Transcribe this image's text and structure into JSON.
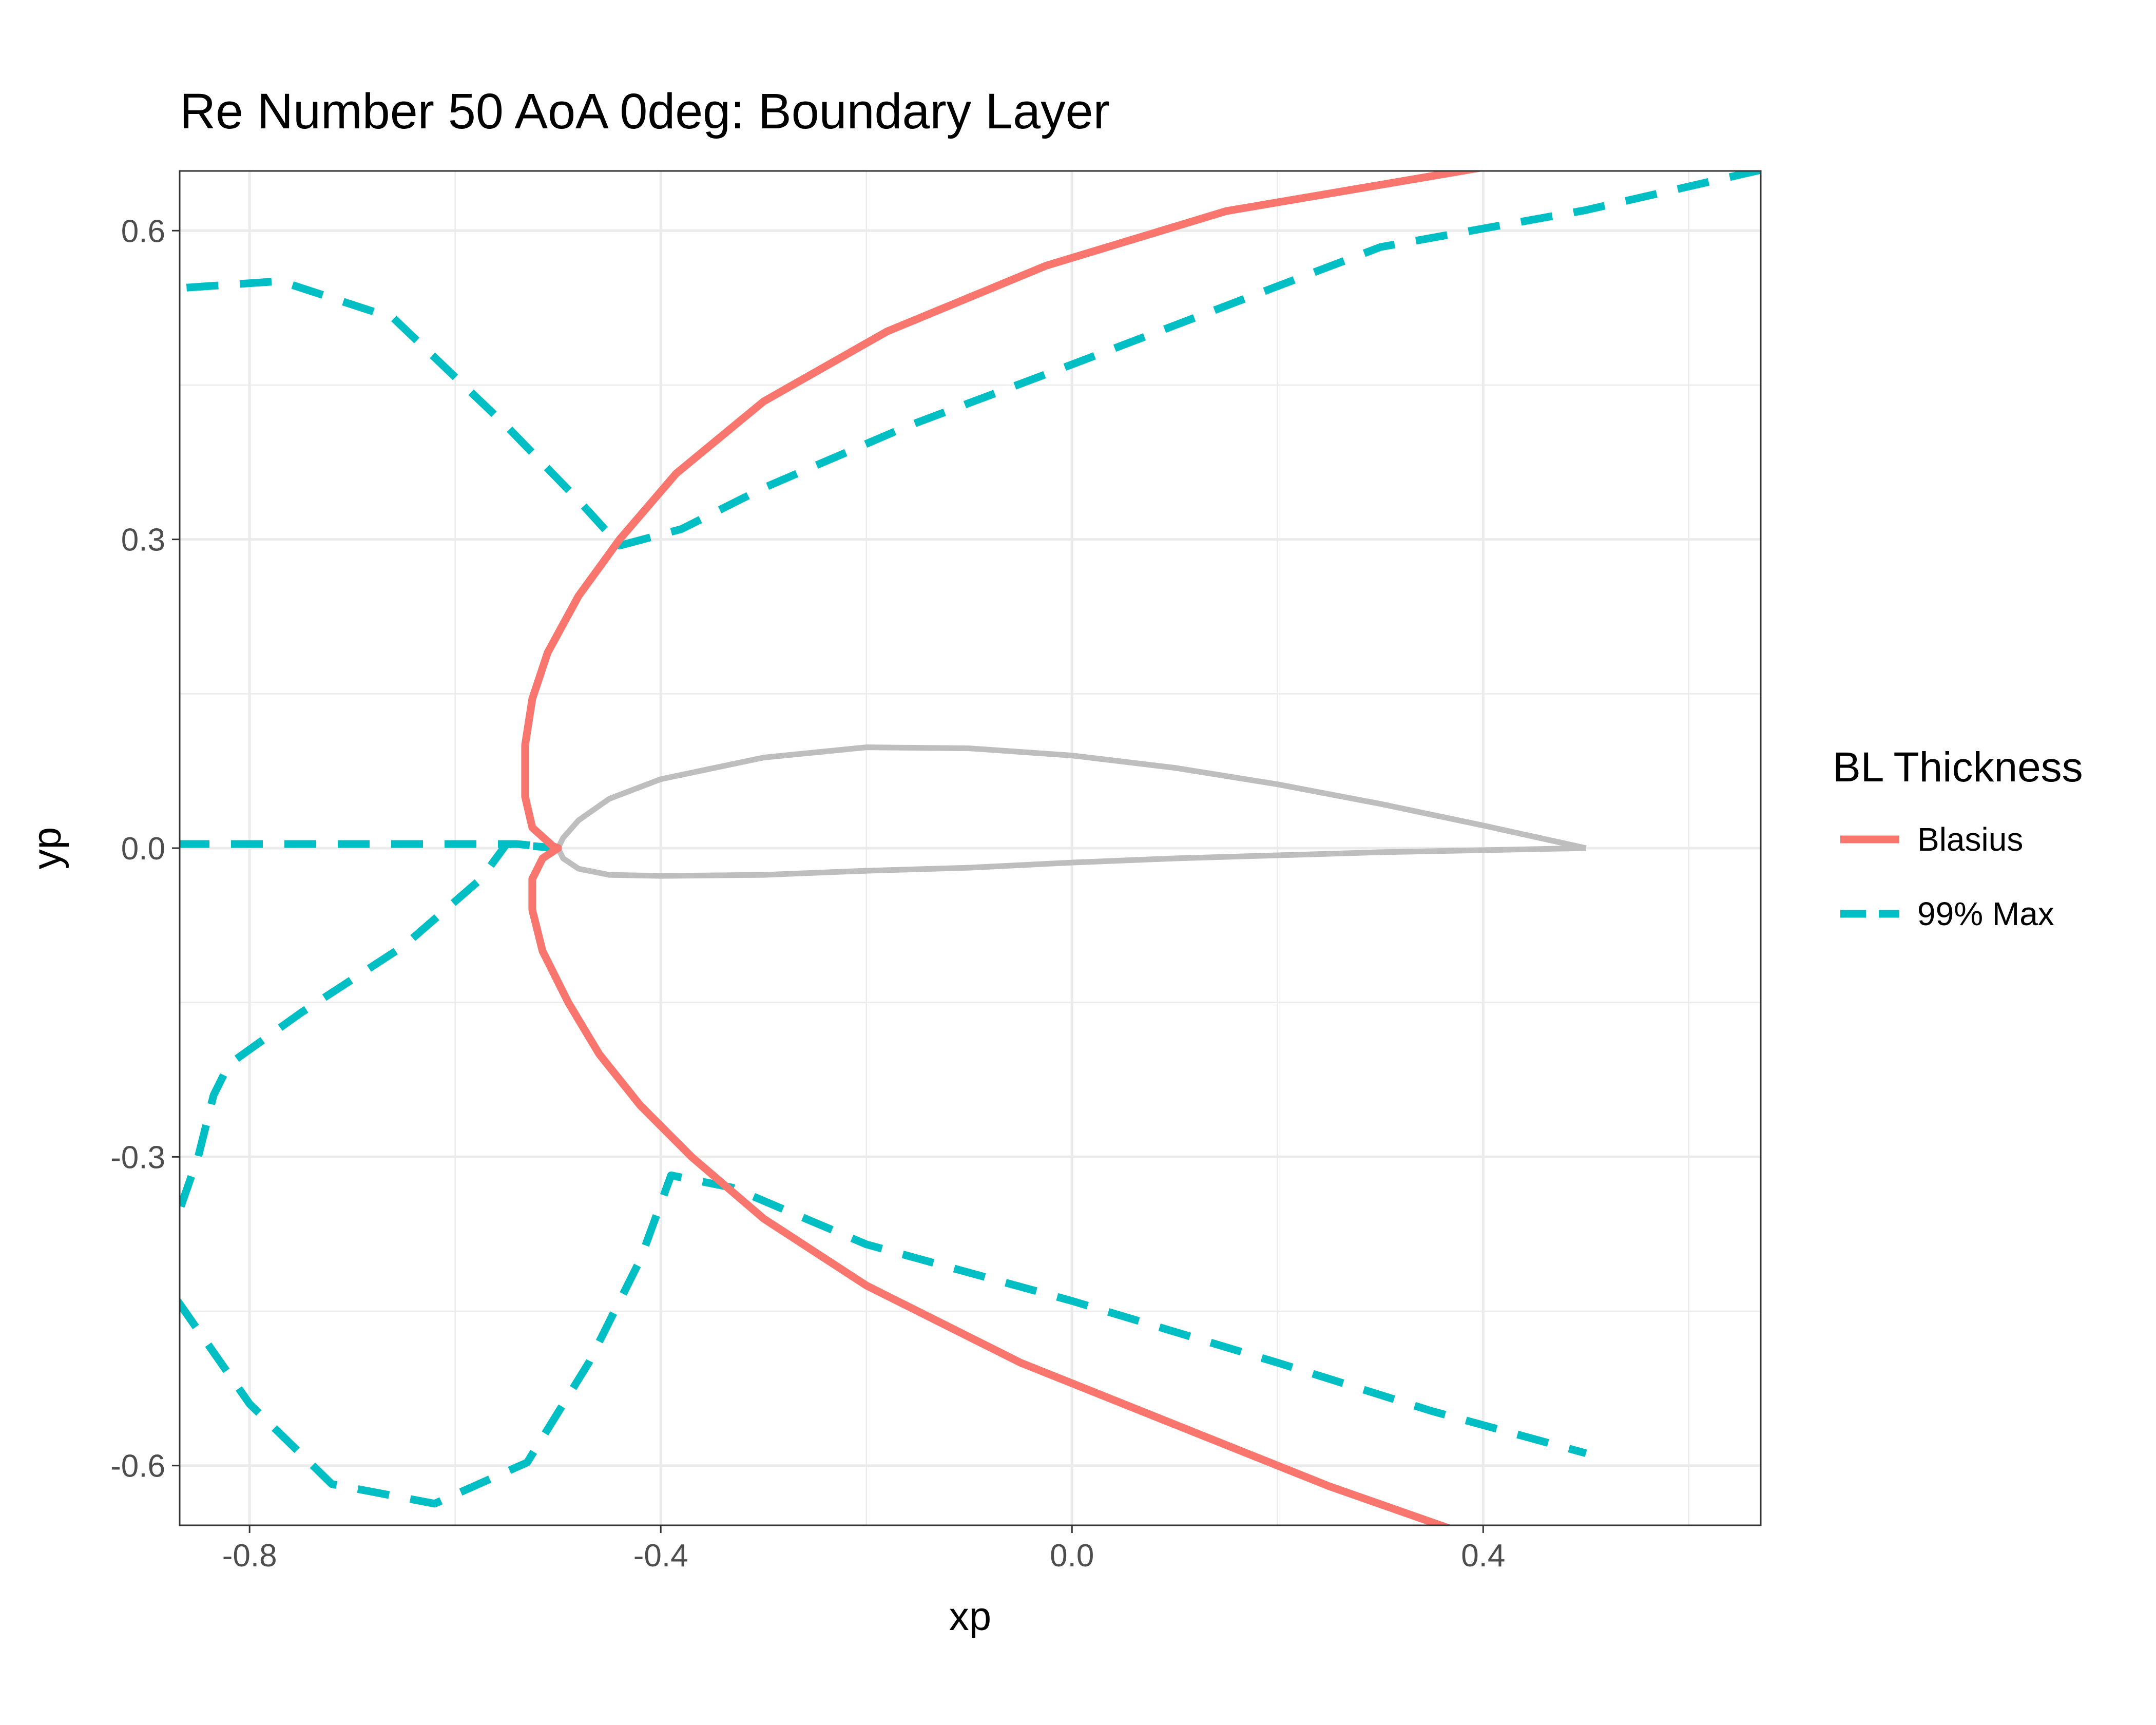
{
  "chart_data": {
    "type": "line",
    "title": "Re Number 50 AoA 0deg: Boundary Layer",
    "xlabel": "xp",
    "ylabel": "yp",
    "xlim": [
      -0.868,
      0.67
    ],
    "ylim": [
      -0.658,
      0.658
    ],
    "x_ticks": [
      -0.8,
      -0.4,
      0.0,
      0.4
    ],
    "x_tick_labels": [
      "-0.8",
      "-0.4",
      "0.0",
      "0.4"
    ],
    "y_ticks": [
      -0.6,
      -0.3,
      0.0,
      0.3,
      0.6
    ],
    "y_tick_labels": [
      "-0.6",
      "-0.3",
      "0.0",
      "0.3",
      "0.6"
    ],
    "grid": true,
    "legend": {
      "title": "BL Thickness",
      "position": "right"
    },
    "colors": {
      "blasius": "#F8766D",
      "max99": "#00BFC4",
      "airfoil": "#BEBEBE"
    },
    "series": [
      {
        "name": "Blasius",
        "style": "solid",
        "color": "#F8766D",
        "points": [
          [
            0.397,
            0.661
          ],
          [
            0.15,
            0.619
          ],
          [
            -0.025,
            0.566
          ],
          [
            -0.18,
            0.502
          ],
          [
            -0.3,
            0.434
          ],
          [
            -0.385,
            0.364
          ],
          [
            -0.44,
            0.3
          ],
          [
            -0.48,
            0.245
          ],
          [
            -0.51,
            0.19
          ],
          [
            -0.525,
            0.145
          ],
          [
            -0.532,
            0.1
          ],
          [
            -0.532,
            0.05
          ],
          [
            -0.525,
            0.02
          ],
          [
            -0.505,
            0.002
          ],
          [
            -0.5,
            0.0
          ],
          [
            -0.515,
            -0.01
          ],
          [
            -0.525,
            -0.03
          ],
          [
            -0.525,
            -0.06
          ],
          [
            -0.515,
            -0.1
          ],
          [
            -0.49,
            -0.15
          ],
          [
            -0.46,
            -0.2
          ],
          [
            -0.42,
            -0.25
          ],
          [
            -0.37,
            -0.3
          ],
          [
            -0.3,
            -0.36
          ],
          [
            -0.2,
            -0.425
          ],
          [
            -0.05,
            -0.5
          ],
          [
            0.1,
            -0.56
          ],
          [
            0.25,
            -0.62
          ],
          [
            0.387,
            -0.668
          ]
        ]
      },
      {
        "name": "99% Max",
        "style": "dashed",
        "color": "#00BFC4",
        "segments": [
          [
            [
              0.67,
              0.659
            ],
            [
              0.5,
              0.62
            ],
            [
              0.3,
              0.584
            ],
            [
              0.15,
              0.527
            ],
            [
              0.0,
              0.47
            ],
            [
              -0.16,
              0.41
            ],
            [
              -0.3,
              0.35
            ],
            [
              -0.38,
              0.31
            ],
            [
              -0.44,
              0.294
            ],
            [
              -0.48,
              0.338
            ],
            [
              -0.55,
              0.41
            ],
            [
              -0.66,
              0.515
            ],
            [
              -0.77,
              0.551
            ],
            [
              -0.87,
              0.544
            ]
          ],
          [
            [
              -0.87,
              0.004
            ],
            [
              -0.54,
              0.004
            ],
            [
              -0.5,
              0.0
            ],
            [
              -0.55,
              0.004
            ],
            [
              -0.575,
              -0.03
            ],
            [
              -0.65,
              -0.095
            ],
            [
              -0.75,
              -0.16
            ],
            [
              -0.82,
              -0.21
            ],
            [
              -0.835,
              -0.24
            ],
            [
              -0.85,
              -0.3
            ],
            [
              -0.87,
              -0.357
            ]
          ],
          [
            [
              -0.87,
              -0.44
            ],
            [
              -0.8,
              -0.54
            ],
            [
              -0.72,
              -0.618
            ],
            [
              -0.62,
              -0.637
            ],
            [
              -0.53,
              -0.597
            ],
            [
              -0.47,
              -0.5
            ],
            [
              -0.42,
              -0.4
            ],
            [
              -0.39,
              -0.318
            ],
            [
              -0.33,
              -0.33
            ],
            [
              -0.2,
              -0.385
            ],
            [
              0.0,
              -0.44
            ],
            [
              0.2,
              -0.5
            ],
            [
              0.35,
              -0.547
            ],
            [
              0.5,
              -0.588
            ]
          ]
        ]
      },
      {
        "style": "solid",
        "color": "#BEBEBE",
        "points": [
          [
            0.5,
            0.0
          ],
          [
            0.4,
            0.022
          ],
          [
            0.3,
            0.043
          ],
          [
            0.2,
            0.062
          ],
          [
            0.1,
            0.078
          ],
          [
            0.0,
            0.09
          ],
          [
            -0.1,
            0.097
          ],
          [
            -0.2,
            0.098
          ],
          [
            -0.3,
            0.088
          ],
          [
            -0.4,
            0.067
          ],
          [
            -0.45,
            0.048
          ],
          [
            -0.48,
            0.027
          ],
          [
            -0.495,
            0.01
          ],
          [
            -0.5,
            0.0
          ],
          [
            -0.495,
            -0.01
          ],
          [
            -0.48,
            -0.02
          ],
          [
            -0.45,
            -0.026
          ],
          [
            -0.4,
            -0.027
          ],
          [
            -0.3,
            -0.026
          ],
          [
            -0.2,
            -0.022
          ],
          [
            -0.1,
            -0.019
          ],
          [
            0.0,
            -0.014
          ],
          [
            0.1,
            -0.01
          ],
          [
            0.2,
            -0.007
          ],
          [
            0.3,
            -0.004
          ],
          [
            0.4,
            -0.002
          ],
          [
            0.5,
            0.0
          ]
        ]
      }
    ]
  }
}
